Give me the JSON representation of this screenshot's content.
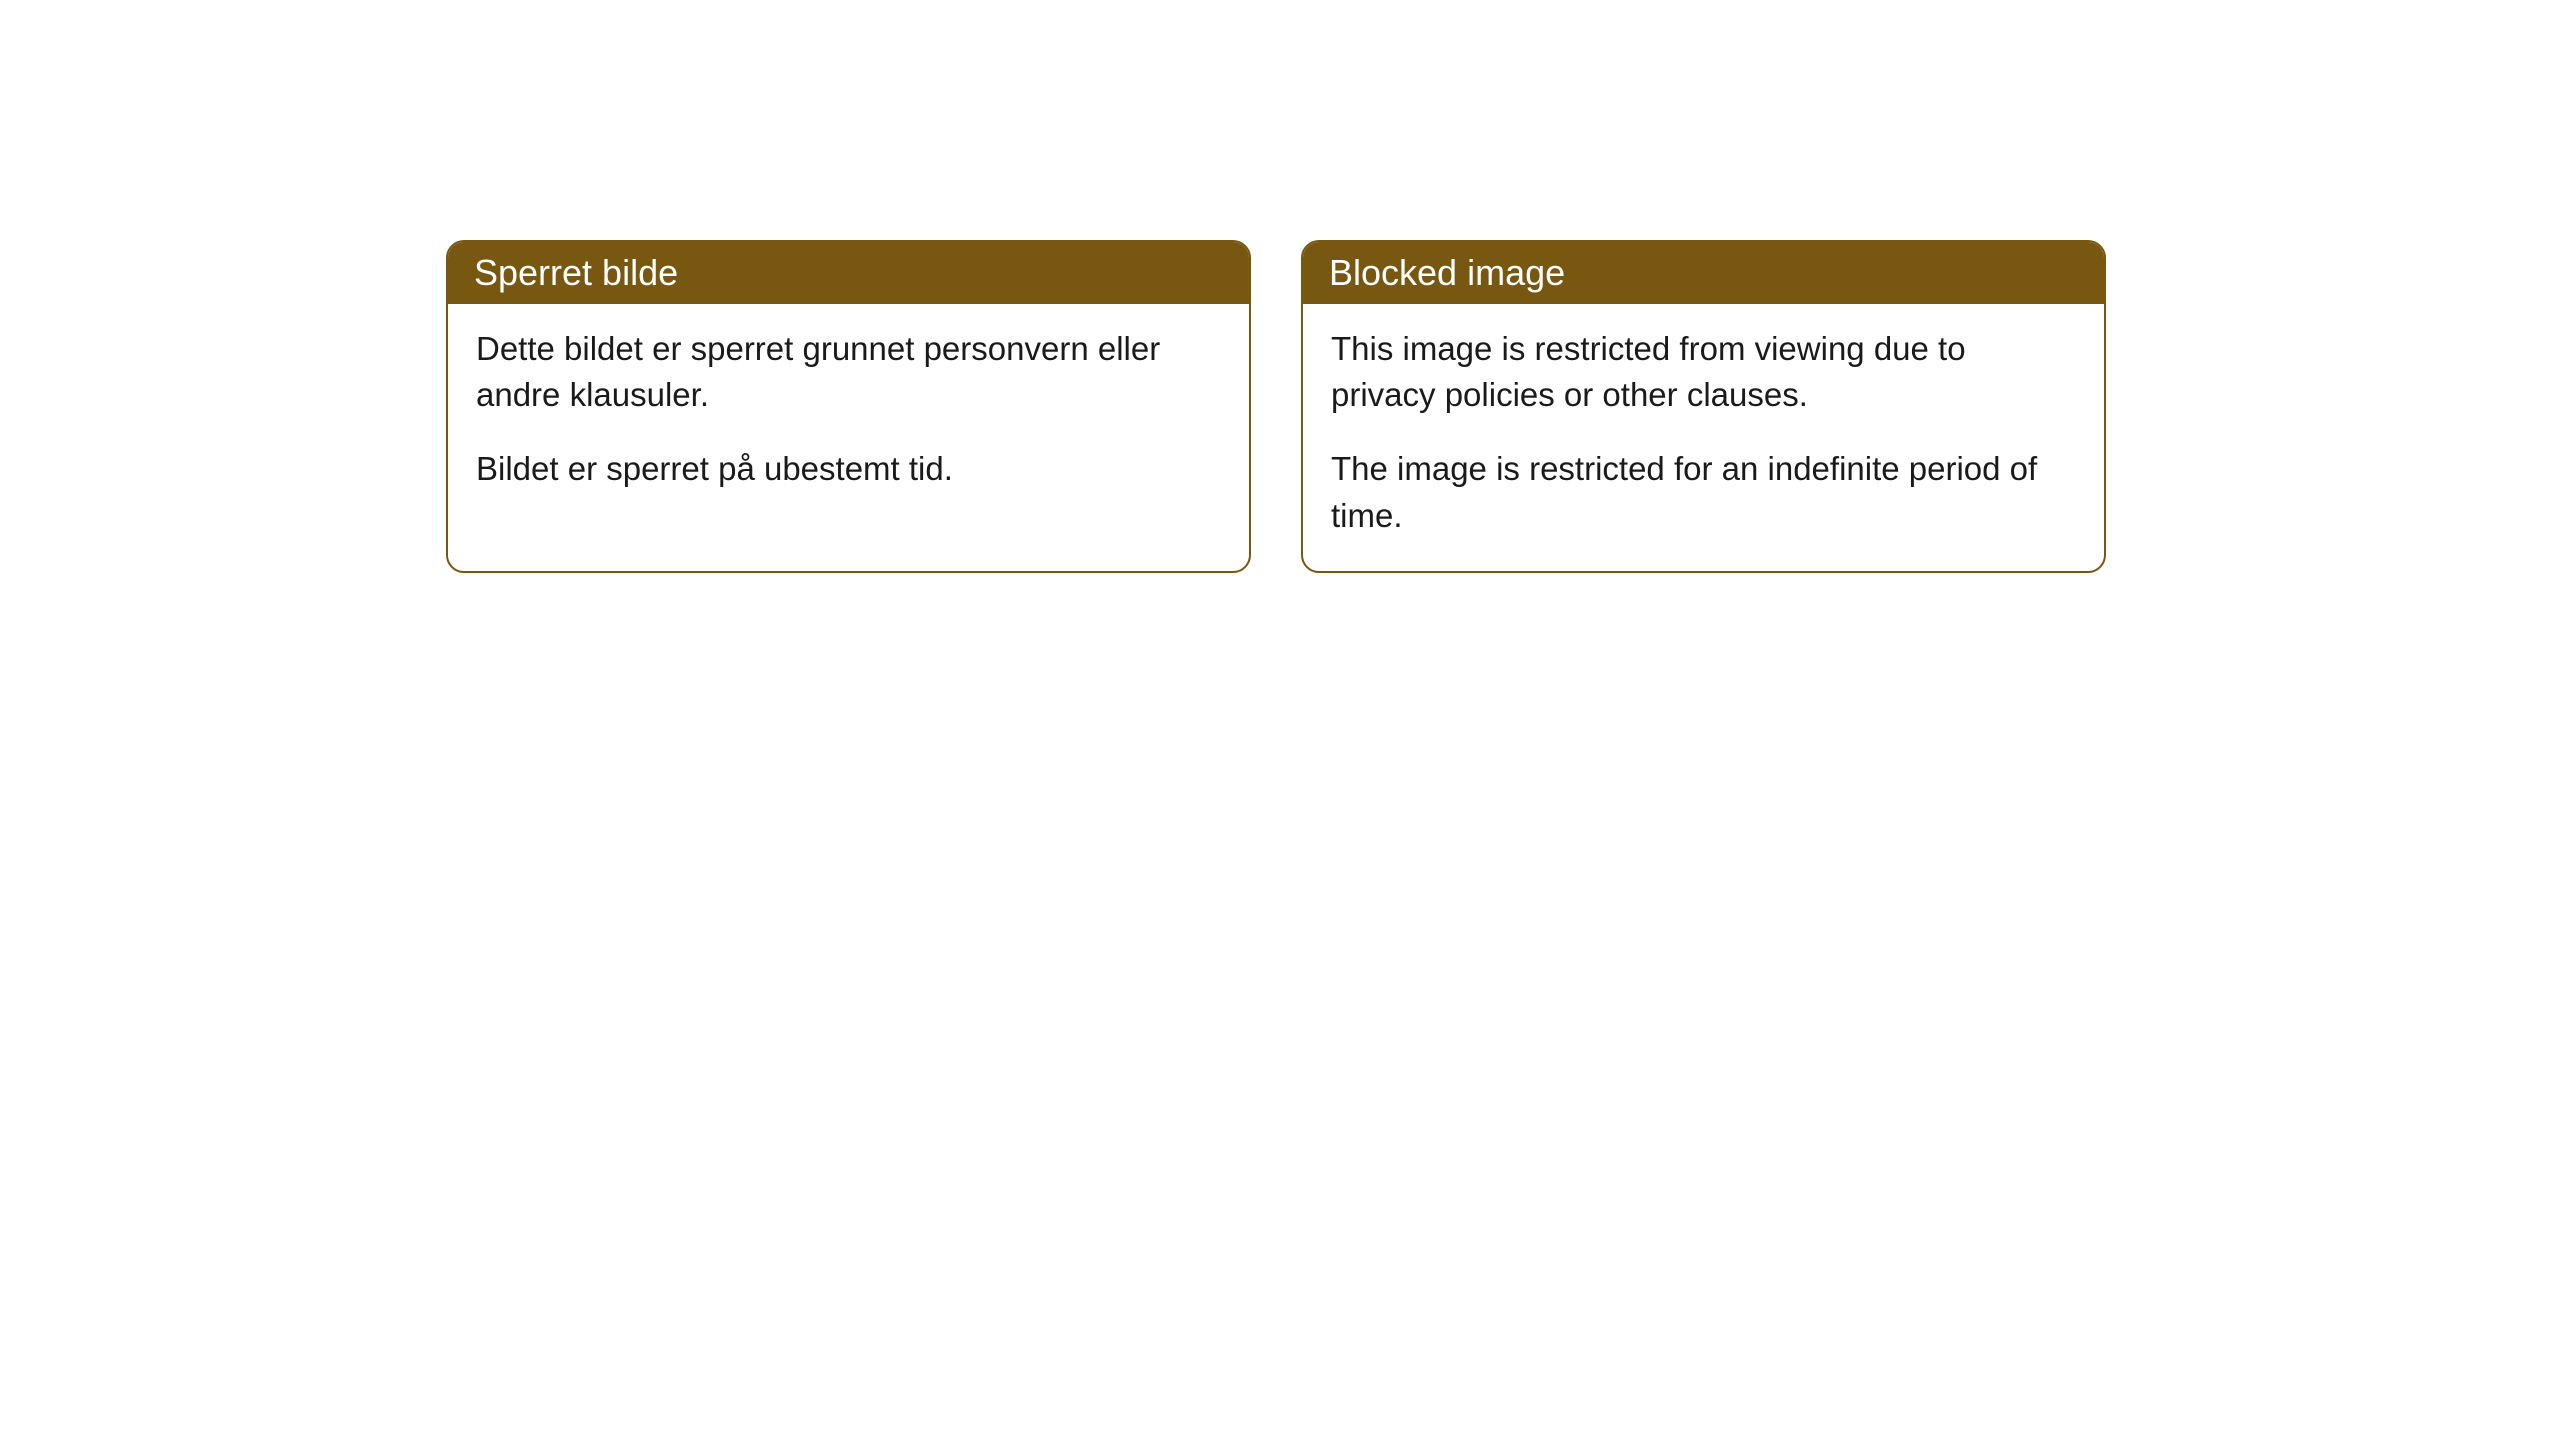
{
  "notices": [
    {
      "title": "Sperret bilde",
      "para1": "Dette bildet er sperret grunnet personvern eller andre klausuler.",
      "para2": "Bildet er sperret på ubestemt tid."
    },
    {
      "title": "Blocked image",
      "para1": "This image is restricted from viewing due to privacy policies or other clauses.",
      "para2": "The image is restricted for an indefinite period of time."
    }
  ],
  "styles": {
    "header_bg": "#785810",
    "header_text_color": "#ffffff",
    "border_color": "#785810",
    "body_bg": "#ffffff",
    "body_text_color": "#1a1a1a",
    "border_radius": 18,
    "title_fontsize": 36,
    "body_fontsize": 33
  }
}
